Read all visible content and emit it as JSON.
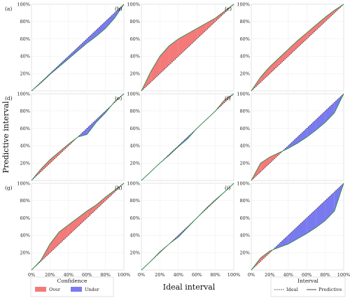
{
  "figure": {
    "xlabel": "Ideal interval",
    "ylabel": "Predictive interval"
  },
  "legends": {
    "confidence": {
      "title": "Confidence",
      "items": [
        {
          "label": "Over",
          "color": "#f47a7a"
        },
        {
          "label": "Under",
          "color": "#7a7af0"
        }
      ]
    },
    "interval": {
      "title": "Interval",
      "items": [
        {
          "label": "Ideal",
          "style": "dotted"
        },
        {
          "label": "Predictive",
          "style": "solid"
        }
      ]
    }
  },
  "chart_data": {
    "type": "area",
    "x_ticks": [
      "0%",
      "20%",
      "40%",
      "60%",
      "80%",
      "100%"
    ],
    "y_ticks": [
      "20%",
      "40%",
      "60%",
      "80%",
      "100%"
    ],
    "xlim": [
      0,
      100
    ],
    "ylim": [
      0,
      100
    ],
    "grid": true,
    "panels": [
      {
        "label": "(a)",
        "x": [
          0,
          10,
          20,
          30,
          40,
          50,
          60,
          70,
          80,
          90,
          100
        ],
        "y": [
          0,
          9,
          19,
          28,
          37,
          46,
          55,
          63,
          72,
          84,
          100
        ]
      },
      {
        "label": "(b)",
        "x": [
          0,
          10,
          20,
          30,
          40,
          50,
          60,
          70,
          80,
          90,
          100
        ],
        "y": [
          0,
          22,
          40,
          52,
          60,
          66,
          72,
          78,
          84,
          92,
          100
        ]
      },
      {
        "label": "(c)",
        "x": [
          0,
          10,
          20,
          30,
          40,
          50,
          60,
          70,
          80,
          90,
          100
        ],
        "y": [
          0,
          16,
          28,
          38,
          48,
          58,
          67,
          76,
          85,
          93,
          100
        ]
      },
      {
        "label": "(d)",
        "x": [
          0,
          10,
          20,
          30,
          40,
          50,
          60,
          70,
          80,
          90,
          100
        ],
        "y": [
          0,
          13,
          24,
          33,
          42,
          50,
          53,
          67,
          78,
          91,
          100
        ]
      },
      {
        "label": "(e)",
        "x": [
          0,
          10,
          20,
          30,
          40,
          50,
          60,
          70,
          80,
          90,
          100
        ],
        "y": [
          0,
          10,
          20,
          29,
          39,
          48,
          60,
          70,
          80,
          93,
          100
        ]
      },
      {
        "label": "(f)",
        "x": [
          0,
          10,
          20,
          30,
          40,
          50,
          60,
          70,
          80,
          90,
          100
        ],
        "y": [
          0,
          20,
          27,
          32,
          37,
          43,
          50,
          58,
          67,
          78,
          100
        ]
      },
      {
        "label": "(g)",
        "x": [
          0,
          10,
          20,
          30,
          40,
          50,
          60,
          70,
          80,
          90,
          100
        ],
        "y": [
          0,
          11,
          30,
          44,
          52,
          60,
          68,
          75,
          84,
          92,
          100
        ]
      },
      {
        "label": "(h)",
        "x": [
          0,
          10,
          20,
          30,
          40,
          50,
          60,
          70,
          80,
          90,
          100
        ],
        "y": [
          0,
          10,
          21,
          30,
          38,
          49,
          60,
          71,
          81,
          90,
          100
        ]
      },
      {
        "label": "(i)",
        "x": [
          0,
          10,
          20,
          30,
          40,
          50,
          60,
          70,
          80,
          90,
          100
        ],
        "y": [
          0,
          14,
          22,
          26,
          30,
          36,
          42,
          49,
          57,
          68,
          100
        ]
      }
    ]
  }
}
